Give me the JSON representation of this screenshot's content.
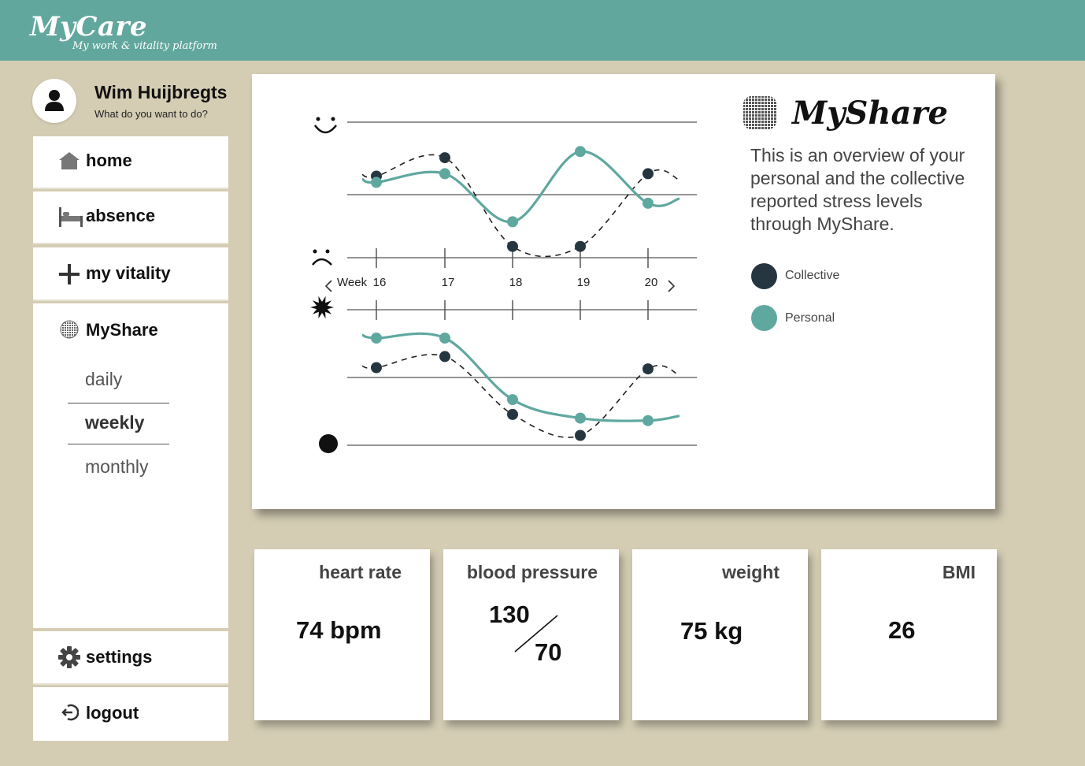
{
  "app": {
    "title": "MyCare",
    "subtitle": "My work & vitality platform"
  },
  "user": {
    "name": "Wim Huijbregts",
    "prompt": "What do you want to do?"
  },
  "nav": {
    "home": "home",
    "absence": "absence",
    "vitality": "my vitality",
    "myshare": "MyShare",
    "sub_items": [
      "daily",
      "weekly",
      "monthly"
    ],
    "active_sub": "weekly",
    "settings": "settings",
    "logout": "logout"
  },
  "myshare": {
    "title": "MyShare",
    "description": "This is an overview of your personal and the collective reported stress levels through MyShare.",
    "legend": [
      {
        "label": "Collective",
        "color": "#263640"
      },
      {
        "label": "Personal",
        "color": "#5fa89f"
      }
    ]
  },
  "chart_data": {
    "type": "line",
    "x": [
      "Week 16",
      "17",
      "18",
      "19",
      "20"
    ],
    "xlabel": "Week",
    "tick_labels": [
      "16",
      "17",
      "18",
      "19",
      "20"
    ],
    "panels": [
      {
        "name": "mood",
        "series": [
          {
            "name": "Collective",
            "values": [
              0.15,
              0.3,
              -0.42,
              -0.42,
              0.17
            ]
          },
          {
            "name": "Personal",
            "values": [
              0.1,
              0.17,
              -0.22,
              0.35,
              -0.07
            ]
          }
        ]
      },
      {
        "name": "stress",
        "series": [
          {
            "name": "Collective",
            "values": [
              0.08,
              0.17,
              -0.3,
              -0.47,
              0.07
            ]
          },
          {
            "name": "Personal",
            "values": [
              0.32,
              0.32,
              -0.18,
              -0.33,
              -0.35
            ]
          }
        ]
      }
    ],
    "colors": {
      "collective": "#263640",
      "personal": "#5fa89f"
    }
  },
  "stats": {
    "heart_rate": {
      "title": "heart rate",
      "value": "74 bpm"
    },
    "blood_pressure": {
      "title": "blood pressure",
      "systolic": "130",
      "diastolic": "70"
    },
    "weight": {
      "title": "weight",
      "value": "75 kg"
    },
    "bmi": {
      "title": "BMI",
      "value": "26"
    }
  },
  "colors": {
    "header": "#62a79d",
    "background": "#d4cdb4",
    "collective": "#263640",
    "personal": "#5fa89f"
  },
  "icons": {
    "home": "home-icon",
    "absence": "bed-icon",
    "vitality": "plus-icon",
    "myshare": "grid-circle-icon",
    "settings": "gear-icon",
    "logout": "logout-icon"
  }
}
